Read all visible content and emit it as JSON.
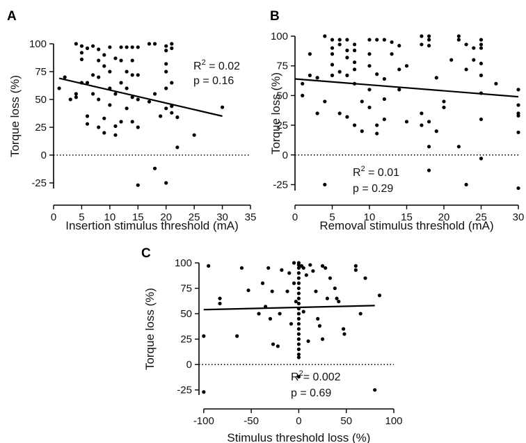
{
  "chart_data": [
    {
      "type": "scatter",
      "panel": "A",
      "xlabel": "Insertion stimulus threshold (mA)",
      "ylabel": "Torque loss (%)",
      "xlim": [
        0,
        35
      ],
      "ylim": [
        -30,
        100
      ],
      "xticks": [
        0,
        5,
        10,
        15,
        20,
        25,
        30,
        35
      ],
      "yticks": [
        -25,
        0,
        25,
        50,
        75,
        100
      ],
      "zero_line": true,
      "annotations": {
        "r2_prefix": "R",
        "r2_sup": "2",
        "r2_value": " = 0.02",
        "p": "p = 0.16"
      },
      "regression": {
        "x": [
          1,
          30
        ],
        "y": [
          69,
          35
        ]
      },
      "points": [
        [
          1,
          60
        ],
        [
          2,
          70
        ],
        [
          3,
          50
        ],
        [
          4,
          55
        ],
        [
          4,
          100
        ],
        [
          4,
          52
        ],
        [
          5,
          98
        ],
        [
          5,
          86
        ],
        [
          5,
          65
        ],
        [
          5,
          92
        ],
        [
          6,
          96
        ],
        [
          6,
          35
        ],
        [
          6,
          28
        ],
        [
          6,
          65
        ],
        [
          7,
          72
        ],
        [
          7,
          55
        ],
        [
          7,
          98
        ],
        [
          8,
          95
        ],
        [
          8,
          70
        ],
        [
          8,
          25
        ],
        [
          8,
          50
        ],
        [
          8,
          85
        ],
        [
          9,
          20
        ],
        [
          9,
          80
        ],
        [
          9,
          90
        ],
        [
          9,
          33
        ],
        [
          10,
          97
        ],
        [
          10,
          75
        ],
        [
          10,
          60
        ],
        [
          10,
          45
        ],
        [
          11,
          87
        ],
        [
          11,
          26
        ],
        [
          11,
          18
        ],
        [
          11,
          55
        ],
        [
          12,
          97
        ],
        [
          12,
          85
        ],
        [
          12,
          65
        ],
        [
          12,
          30
        ],
        [
          13,
          97
        ],
        [
          13,
          75
        ],
        [
          13,
          60
        ],
        [
          13,
          42
        ],
        [
          14,
          97
        ],
        [
          14,
          85
        ],
        [
          14,
          72
        ],
        [
          14,
          52
        ],
        [
          14,
          30
        ],
        [
          15,
          97
        ],
        [
          15,
          72
        ],
        [
          15,
          50
        ],
        [
          15,
          -27
        ],
        [
          15,
          25
        ],
        [
          17,
          100
        ],
        [
          17,
          48
        ],
        [
          18,
          100
        ],
        [
          18,
          -12
        ],
        [
          18,
          55
        ],
        [
          19,
          35
        ],
        [
          20,
          98
        ],
        [
          20,
          94
        ],
        [
          20,
          82
        ],
        [
          20,
          75
        ],
        [
          20,
          60
        ],
        [
          20,
          42
        ],
        [
          20,
          -25
        ],
        [
          21,
          100
        ],
        [
          21,
          96
        ],
        [
          21,
          65
        ],
        [
          21,
          44
        ],
        [
          21,
          38
        ],
        [
          22,
          34
        ],
        [
          22,
          7
        ],
        [
          25,
          18
        ],
        [
          30,
          43
        ]
      ]
    },
    {
      "type": "scatter",
      "panel": "B",
      "xlabel": "Removal stimulus threshold (mA)",
      "ylabel": "Torque loss (%)",
      "xlim": [
        0,
        30
      ],
      "ylim": [
        -30,
        100
      ],
      "xticks": [
        0,
        5,
        10,
        15,
        20,
        25,
        30
      ],
      "yticks": [
        -25,
        0,
        25,
        50,
        75,
        100
      ],
      "zero_line": true,
      "annotations": {
        "r2_prefix": "R",
        "r2_sup": "2",
        "r2_value": " = 0.01",
        "p": "p = 0.29"
      },
      "regression": {
        "x": [
          0,
          30
        ],
        "y": [
          64,
          49
        ]
      },
      "points": [
        [
          1,
          60
        ],
        [
          1,
          50
        ],
        [
          2,
          85
        ],
        [
          2,
          67
        ],
        [
          3,
          65
        ],
        [
          3,
          35
        ],
        [
          4,
          100
        ],
        [
          4,
          -25
        ],
        [
          4,
          45
        ],
        [
          5,
          97
        ],
        [
          5,
          90
        ],
        [
          5,
          85
        ],
        [
          5,
          76
        ],
        [
          5,
          67
        ],
        [
          6,
          97
        ],
        [
          6,
          93
        ],
        [
          6,
          70
        ],
        [
          6,
          35
        ],
        [
          7,
          97
        ],
        [
          7,
          88
        ],
        [
          7,
          82
        ],
        [
          7,
          67
        ],
        [
          7,
          32
        ],
        [
          8,
          93
        ],
        [
          8,
          88
        ],
        [
          8,
          78
        ],
        [
          8,
          72
        ],
        [
          8,
          60
        ],
        [
          8,
          25
        ],
        [
          9,
          45
        ],
        [
          9,
          20
        ],
        [
          10,
          97
        ],
        [
          10,
          85
        ],
        [
          10,
          75
        ],
        [
          10,
          55
        ],
        [
          10,
          40
        ],
        [
          11,
          97
        ],
        [
          11,
          68
        ],
        [
          11,
          25
        ],
        [
          11,
          18
        ],
        [
          12,
          97
        ],
        [
          12,
          64
        ],
        [
          12,
          47
        ],
        [
          12,
          30
        ],
        [
          13,
          95
        ],
        [
          13,
          85
        ],
        [
          14,
          92
        ],
        [
          14,
          72
        ],
        [
          14,
          55
        ],
        [
          15,
          75
        ],
        [
          15,
          28
        ],
        [
          17,
          100
        ],
        [
          17,
          93
        ],
        [
          17,
          35
        ],
        [
          17,
          25
        ],
        [
          18,
          100
        ],
        [
          18,
          97
        ],
        [
          18,
          92
        ],
        [
          18,
          28
        ],
        [
          18,
          7
        ],
        [
          18,
          -13
        ],
        [
          19,
          65
        ],
        [
          19,
          20
        ],
        [
          20,
          45
        ],
        [
          20,
          40
        ],
        [
          21,
          80
        ],
        [
          22,
          100
        ],
        [
          22,
          97
        ],
        [
          22,
          7
        ],
        [
          23,
          93
        ],
        [
          23,
          72
        ],
        [
          23,
          -25
        ],
        [
          24,
          90
        ],
        [
          24,
          80
        ],
        [
          25,
          97
        ],
        [
          25,
          93
        ],
        [
          25,
          90
        ],
        [
          25,
          77
        ],
        [
          25,
          67
        ],
        [
          25,
          52
        ],
        [
          25,
          30
        ],
        [
          25,
          -3
        ],
        [
          27,
          60
        ],
        [
          30,
          55
        ],
        [
          30,
          42
        ],
        [
          30,
          35
        ],
        [
          30,
          33
        ],
        [
          30,
          19
        ],
        [
          30,
          -28
        ]
      ]
    },
    {
      "type": "scatter",
      "panel": "C",
      "xlabel": "Stimulus threshold loss (%)",
      "ylabel": "Torque loss (%)",
      "xlim": [
        -105,
        100
      ],
      "ylim": [
        -30,
        100
      ],
      "xticks": [
        -100,
        -50,
        0,
        50,
        100
      ],
      "yticks": [
        -25,
        0,
        25,
        50,
        75,
        100
      ],
      "zero_line": true,
      "annotations": {
        "r2_prefix": "R",
        "r2_sup": "2",
        "r2_value": "= 0.002",
        "p": "p = 0.69"
      },
      "regression": {
        "x": [
          -100,
          80
        ],
        "y": [
          54,
          58
        ]
      },
      "points": [
        [
          -100,
          28
        ],
        [
          -100,
          -27
        ],
        [
          -95,
          97
        ],
        [
          -83,
          65
        ],
        [
          -83,
          60
        ],
        [
          -65,
          28
        ],
        [
          -60,
          95
        ],
        [
          -53,
          73
        ],
        [
          -42,
          50
        ],
        [
          -38,
          80
        ],
        [
          -35,
          57
        ],
        [
          -32,
          95
        ],
        [
          -30,
          45
        ],
        [
          -28,
          72
        ],
        [
          -27,
          20
        ],
        [
          -22,
          18
        ],
        [
          -20,
          50
        ],
        [
          -18,
          93
        ],
        [
          -12,
          72
        ],
        [
          -10,
          90
        ],
        [
          -8,
          40
        ],
        [
          -5,
          100
        ],
        [
          -5,
          80
        ],
        [
          -3,
          62
        ],
        [
          0,
          100
        ],
        [
          0,
          98
        ],
        [
          0,
          95
        ],
        [
          0,
          90
        ],
        [
          0,
          85
        ],
        [
          0,
          80
        ],
        [
          0,
          75
        ],
        [
          0,
          70
        ],
        [
          0,
          65
        ],
        [
          0,
          60
        ],
        [
          0,
          55
        ],
        [
          0,
          50
        ],
        [
          0,
          45
        ],
        [
          0,
          40
        ],
        [
          0,
          35
        ],
        [
          0,
          30
        ],
        [
          0,
          25
        ],
        [
          0,
          20
        ],
        [
          0,
          15
        ],
        [
          0,
          10
        ],
        [
          0,
          7
        ],
        [
          0,
          -12
        ],
        [
          3,
          97
        ],
        [
          5,
          95
        ],
        [
          5,
          52
        ],
        [
          8,
          88
        ],
        [
          10,
          23
        ],
        [
          12,
          98
        ],
        [
          15,
          92
        ],
        [
          18,
          72
        ],
        [
          20,
          45
        ],
        [
          22,
          38
        ],
        [
          25,
          97
        ],
        [
          25,
          25
        ],
        [
          28,
          95
        ],
        [
          30,
          65
        ],
        [
          33,
          85
        ],
        [
          38,
          75
        ],
        [
          40,
          65
        ],
        [
          42,
          62
        ],
        [
          47,
          35
        ],
        [
          48,
          30
        ],
        [
          60,
          97
        ],
        [
          60,
          93
        ],
        [
          65,
          50
        ],
        [
          70,
          85
        ],
        [
          80,
          -25
        ],
        [
          85,
          68
        ]
      ]
    }
  ]
}
